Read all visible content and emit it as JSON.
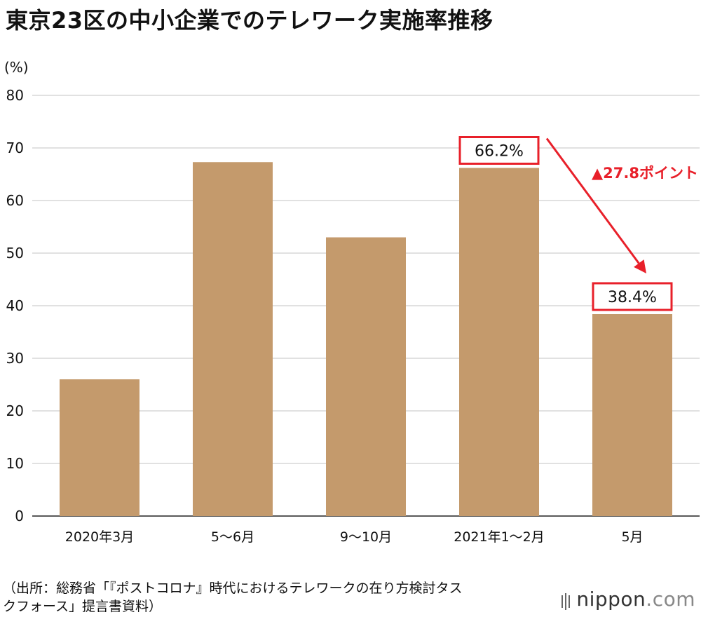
{
  "title": "東京23区の中小企業でのテレワーク実施率推移",
  "source_line1": "（出所：総務省「『ポストコロナ』時代におけるテレワークの在り方検討タス",
  "source_line2": "クフォース」提言書資料）",
  "logo": {
    "name": "nippon",
    "suffix": ".com"
  },
  "colors": {
    "bar": "#c49a6c",
    "grid": "#cfcfcf",
    "accent": "#e8202a",
    "text": "#111111"
  },
  "chart_data": {
    "type": "bar",
    "unit_label": "(%)",
    "categories": [
      "2020年3月",
      "5〜6月",
      "9〜10月",
      "2021年1〜2月",
      "5月"
    ],
    "values": [
      26.0,
      67.3,
      53.0,
      66.2,
      38.4
    ],
    "ylim": [
      0,
      80
    ],
    "yticks": [
      0,
      10,
      20,
      30,
      40,
      50,
      60,
      70,
      80
    ],
    "grid": true,
    "annotations": [
      {
        "category_index": 3,
        "text": "66.2%"
      },
      {
        "category_index": 4,
        "text": "38.4%"
      }
    ],
    "change_label": "▲27.8ポイント"
  }
}
